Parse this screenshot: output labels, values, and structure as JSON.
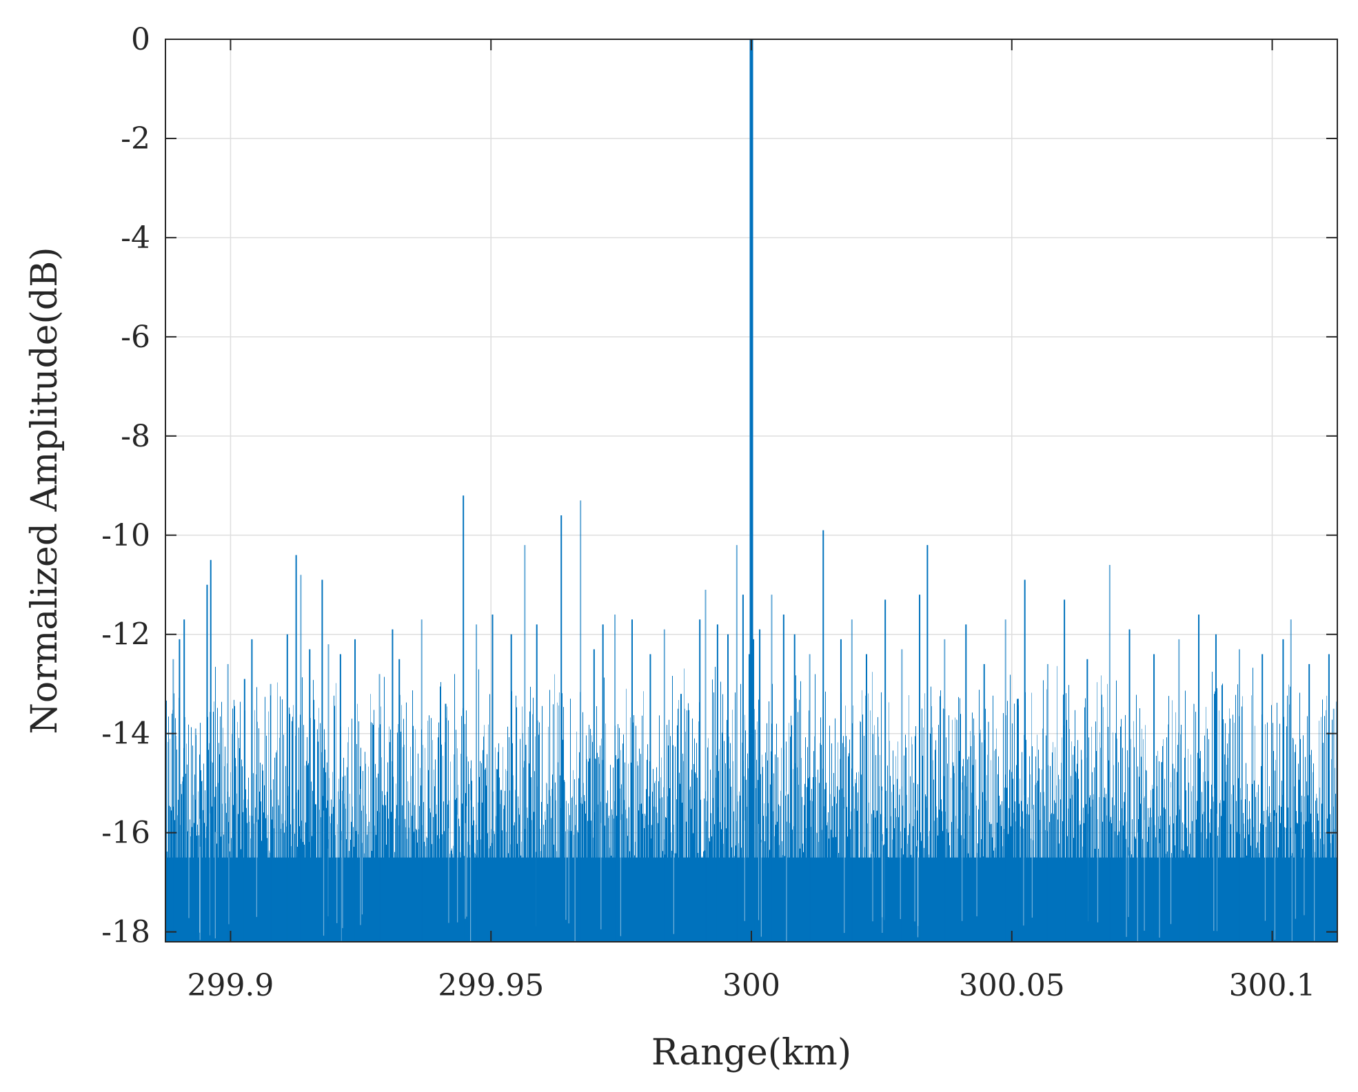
{
  "chart_data": {
    "type": "line",
    "title": "",
    "xlabel": "Range(km)",
    "ylabel": "Normalized Amplitude(dB)",
    "xlim": [
      299.8875,
      300.1125
    ],
    "ylim": [
      -18.2,
      0
    ],
    "xticks": [
      299.9,
      299.95,
      300,
      300.05,
      300.1
    ],
    "xtick_labels": [
      "299.9",
      "299.95",
      "300",
      "300.05",
      "300.1"
    ],
    "yticks": [
      0,
      -2,
      -4,
      -6,
      -8,
      -10,
      -12,
      -14,
      -16,
      -18
    ],
    "ytick_labels": [
      "0",
      "-2",
      "-4",
      "-6",
      "-8",
      "-10",
      "-12",
      "-14",
      "-16",
      "-18"
    ],
    "grid": true,
    "legend": "none",
    "series": [
      {
        "color": "#0072bd",
        "style": "stem (dense noise floor with single main peak)",
        "x": [
          299.889,
          299.8902,
          299.8911,
          299.8933,
          299.8955,
          299.8962,
          299.8995,
          299.9027,
          299.9041,
          299.9077,
          299.9109,
          299.9126,
          299.9135,
          299.9152,
          299.9176,
          299.9188,
          299.9211,
          299.9239,
          299.9286,
          299.9311,
          299.9324,
          299.9367,
          299.9413,
          299.9447,
          299.9472,
          299.9503,
          299.9539,
          299.9565,
          299.9588,
          299.9635,
          299.9672,
          299.9698,
          299.9715,
          299.9738,
          299.9771,
          299.9806,
          299.9833,
          299.9865,
          299.9901,
          299.9912,
          299.9935,
          299.9955,
          299.9972,
          299.9984,
          299.9996,
          300.0,
          300.0004,
          300.0016,
          300.0039,
          300.0062,
          300.0083,
          300.0112,
          300.0138,
          300.0172,
          300.0193,
          300.0221,
          300.0257,
          300.0289,
          300.0323,
          300.0338,
          300.0371,
          300.0412,
          300.0447,
          300.0488,
          300.0512,
          300.0525,
          300.0569,
          300.0601,
          300.0645,
          300.0688,
          300.0726,
          300.0773,
          300.0821,
          300.0859,
          300.0892,
          300.0937,
          300.0981,
          300.1021,
          300.1036,
          300.1071,
          300.1109,
          300.1118
        ],
        "y": [
          -12.5,
          -12.1,
          -11.7,
          -13.9,
          -11.0,
          -10.5,
          -12.6,
          -12.9,
          -12.1,
          -13.0,
          -12.0,
          -10.4,
          -10.8,
          -12.3,
          -10.9,
          -12.2,
          -12.4,
          -12.1,
          -12.8,
          -11.9,
          -12.5,
          -11.7,
          -13.4,
          -9.2,
          -11.8,
          -11.6,
          -12.0,
          -10.2,
          -11.8,
          -9.6,
          -9.3,
          -12.3,
          -11.8,
          -11.6,
          -11.7,
          -12.4,
          -11.9,
          -13.2,
          -11.7,
          -11.1,
          -11.8,
          -12.0,
          -10.2,
          -11.2,
          -12.4,
          0.0,
          -12.1,
          -11.9,
          -11.2,
          -11.6,
          -12.0,
          -12.4,
          -9.9,
          -12.1,
          -11.7,
          -12.4,
          -11.3,
          -12.3,
          -11.2,
          -10.2,
          -12.1,
          -11.8,
          -12.6,
          -11.7,
          -13.3,
          -10.9,
          -12.6,
          -11.3,
          -12.5,
          -10.6,
          -11.9,
          -12.4,
          -12.1,
          -11.6,
          -12.0,
          -12.3,
          -12.4,
          -12.1,
          -11.7,
          -12.6,
          -12.4,
          -13.5
        ],
        "noise_floor": {
          "min": -18.2,
          "typical": -16.5,
          "peak_min": -15.5,
          "peak_max": -12.5
        }
      }
    ]
  }
}
